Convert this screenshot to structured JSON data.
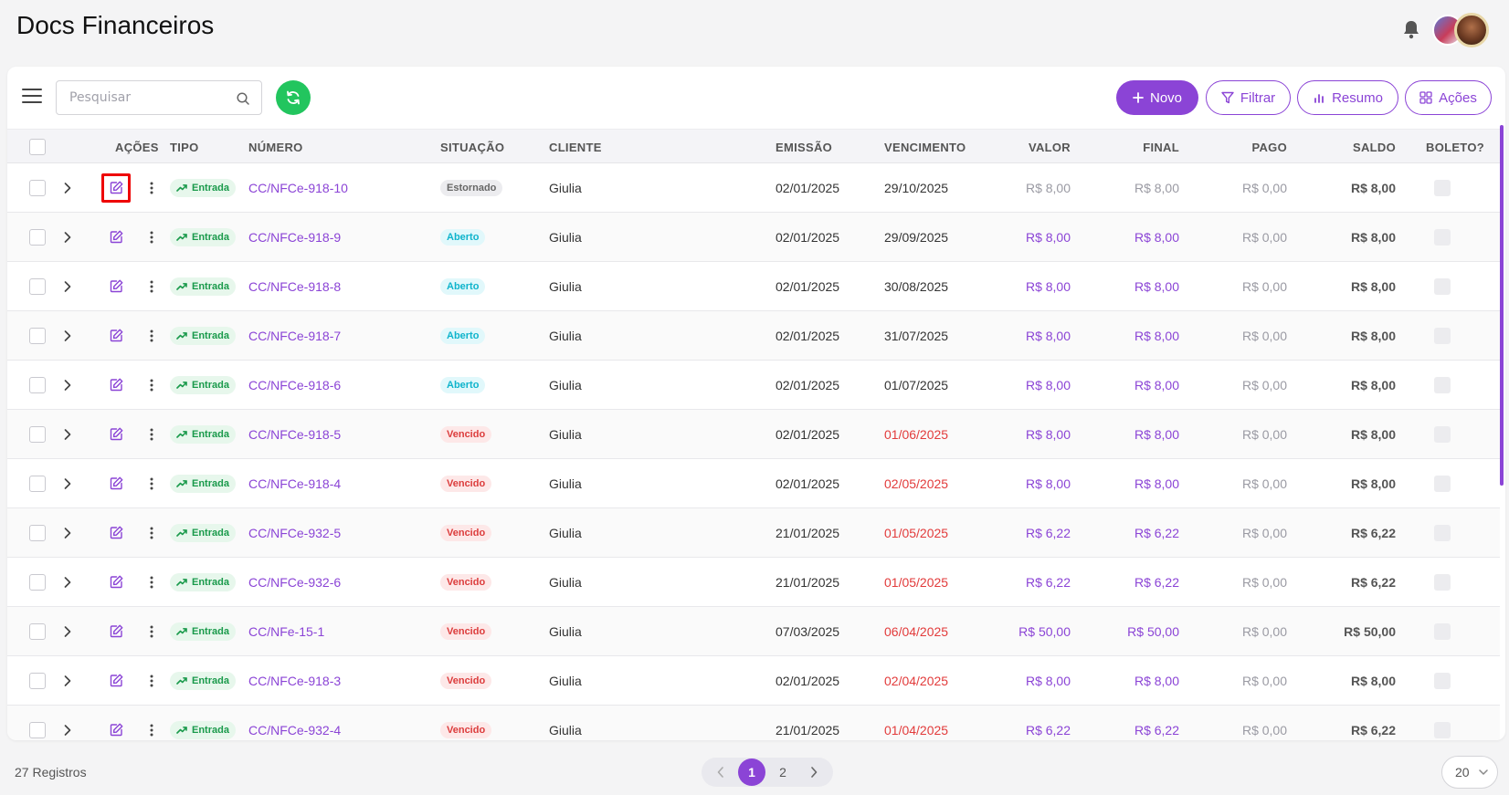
{
  "header": {
    "title": "Docs Financeiros"
  },
  "toolbar": {
    "search_placeholder": "Pesquisar",
    "novo_label": "Novo",
    "filtrar_label": "Filtrar",
    "resumo_label": "Resumo",
    "acoes_label": "Ações"
  },
  "table": {
    "columns": {
      "acoes": "AÇÕES",
      "tipo": "TIPO",
      "numero": "NÚMERO",
      "situacao": "SITUAÇÃO",
      "cliente": "CLIENTE",
      "emissao": "EMISSÃO",
      "vencimento": "VENCIMENTO",
      "valor": "VALOR",
      "final": "FINAL",
      "pago": "PAGO",
      "saldo": "SALDO",
      "boleto": "BOLETO?"
    },
    "rows": [
      {
        "tipo": "Entrada",
        "numero": "CC/NFCe-918-10",
        "situacao": "Estornado",
        "status": "estornado",
        "cliente": "Giulia",
        "emissao": "02/01/2025",
        "vencimento": "29/10/2025",
        "overdue": false,
        "valor": "R$ 8,00",
        "final": "R$ 8,00",
        "pago": "R$ 0,00",
        "saldo": "R$ 8,00"
      },
      {
        "tipo": "Entrada",
        "numero": "CC/NFCe-918-9",
        "situacao": "Aberto",
        "status": "aberto",
        "cliente": "Giulia",
        "emissao": "02/01/2025",
        "vencimento": "29/09/2025",
        "overdue": false,
        "valor": "R$ 8,00",
        "final": "R$ 8,00",
        "pago": "R$ 0,00",
        "saldo": "R$ 8,00"
      },
      {
        "tipo": "Entrada",
        "numero": "CC/NFCe-918-8",
        "situacao": "Aberto",
        "status": "aberto",
        "cliente": "Giulia",
        "emissao": "02/01/2025",
        "vencimento": "30/08/2025",
        "overdue": false,
        "valor": "R$ 8,00",
        "final": "R$ 8,00",
        "pago": "R$ 0,00",
        "saldo": "R$ 8,00"
      },
      {
        "tipo": "Entrada",
        "numero": "CC/NFCe-918-7",
        "situacao": "Aberto",
        "status": "aberto",
        "cliente": "Giulia",
        "emissao": "02/01/2025",
        "vencimento": "31/07/2025",
        "overdue": false,
        "valor": "R$ 8,00",
        "final": "R$ 8,00",
        "pago": "R$ 0,00",
        "saldo": "R$ 8,00"
      },
      {
        "tipo": "Entrada",
        "numero": "CC/NFCe-918-6",
        "situacao": "Aberto",
        "status": "aberto",
        "cliente": "Giulia",
        "emissao": "02/01/2025",
        "vencimento": "01/07/2025",
        "overdue": false,
        "valor": "R$ 8,00",
        "final": "R$ 8,00",
        "pago": "R$ 0,00",
        "saldo": "R$ 8,00"
      },
      {
        "tipo": "Entrada",
        "numero": "CC/NFCe-918-5",
        "situacao": "Vencido",
        "status": "vencido",
        "cliente": "Giulia",
        "emissao": "02/01/2025",
        "vencimento": "01/06/2025",
        "overdue": true,
        "valor": "R$ 8,00",
        "final": "R$ 8,00",
        "pago": "R$ 0,00",
        "saldo": "R$ 8,00"
      },
      {
        "tipo": "Entrada",
        "numero": "CC/NFCe-918-4",
        "situacao": "Vencido",
        "status": "vencido",
        "cliente": "Giulia",
        "emissao": "02/01/2025",
        "vencimento": "02/05/2025",
        "overdue": true,
        "valor": "R$ 8,00",
        "final": "R$ 8,00",
        "pago": "R$ 0,00",
        "saldo": "R$ 8,00"
      },
      {
        "tipo": "Entrada",
        "numero": "CC/NFCe-932-5",
        "situacao": "Vencido",
        "status": "vencido",
        "cliente": "Giulia",
        "emissao": "21/01/2025",
        "vencimento": "01/05/2025",
        "overdue": true,
        "valor": "R$ 6,22",
        "final": "R$ 6,22",
        "pago": "R$ 0,00",
        "saldo": "R$ 6,22"
      },
      {
        "tipo": "Entrada",
        "numero": "CC/NFCe-932-6",
        "situacao": "Vencido",
        "status": "vencido",
        "cliente": "Giulia",
        "emissao": "21/01/2025",
        "vencimento": "01/05/2025",
        "overdue": true,
        "valor": "R$ 6,22",
        "final": "R$ 6,22",
        "pago": "R$ 0,00",
        "saldo": "R$ 6,22"
      },
      {
        "tipo": "Entrada",
        "numero": "CC/NFe-15-1",
        "situacao": "Vencido",
        "status": "vencido",
        "cliente": "Giulia",
        "emissao": "07/03/2025",
        "vencimento": "06/04/2025",
        "overdue": true,
        "valor": "R$ 50,00",
        "final": "R$ 50,00",
        "pago": "R$ 0,00",
        "saldo": "R$ 50,00"
      },
      {
        "tipo": "Entrada",
        "numero": "CC/NFCe-918-3",
        "situacao": "Vencido",
        "status": "vencido",
        "cliente": "Giulia",
        "emissao": "02/01/2025",
        "vencimento": "02/04/2025",
        "overdue": true,
        "valor": "R$ 8,00",
        "final": "R$ 8,00",
        "pago": "R$ 0,00",
        "saldo": "R$ 8,00"
      },
      {
        "tipo": "Entrada",
        "numero": "CC/NFCe-932-4",
        "situacao": "Vencido",
        "status": "vencido",
        "cliente": "Giulia",
        "emissao": "21/01/2025",
        "vencimento": "01/04/2025",
        "overdue": true,
        "valor": "R$ 6,22",
        "final": "R$ 6,22",
        "pago": "R$ 0,00",
        "saldo": "R$ 6,22"
      }
    ]
  },
  "footer": {
    "total_label": "27 Registros",
    "pages": [
      "1",
      "2"
    ],
    "current_page": "1",
    "per_page": "20"
  },
  "colors": {
    "accent": "#8b44d6",
    "refresh": "#22c55e",
    "overdue": "#e23b3b",
    "edit_highlight": "#ee0000"
  },
  "icons": {
    "menu": "hamburger-icon",
    "search": "search-icon",
    "refresh": "refresh-icon",
    "novo": "plus-icon",
    "filtrar": "filter-icon",
    "resumo": "bar-chart-icon",
    "acoes": "grid-icon",
    "bell": "bell-icon",
    "expand": "chevron-right-icon",
    "edit": "edit-icon",
    "more": "more-vertical-icon",
    "tipo": "trending-up-icon"
  }
}
